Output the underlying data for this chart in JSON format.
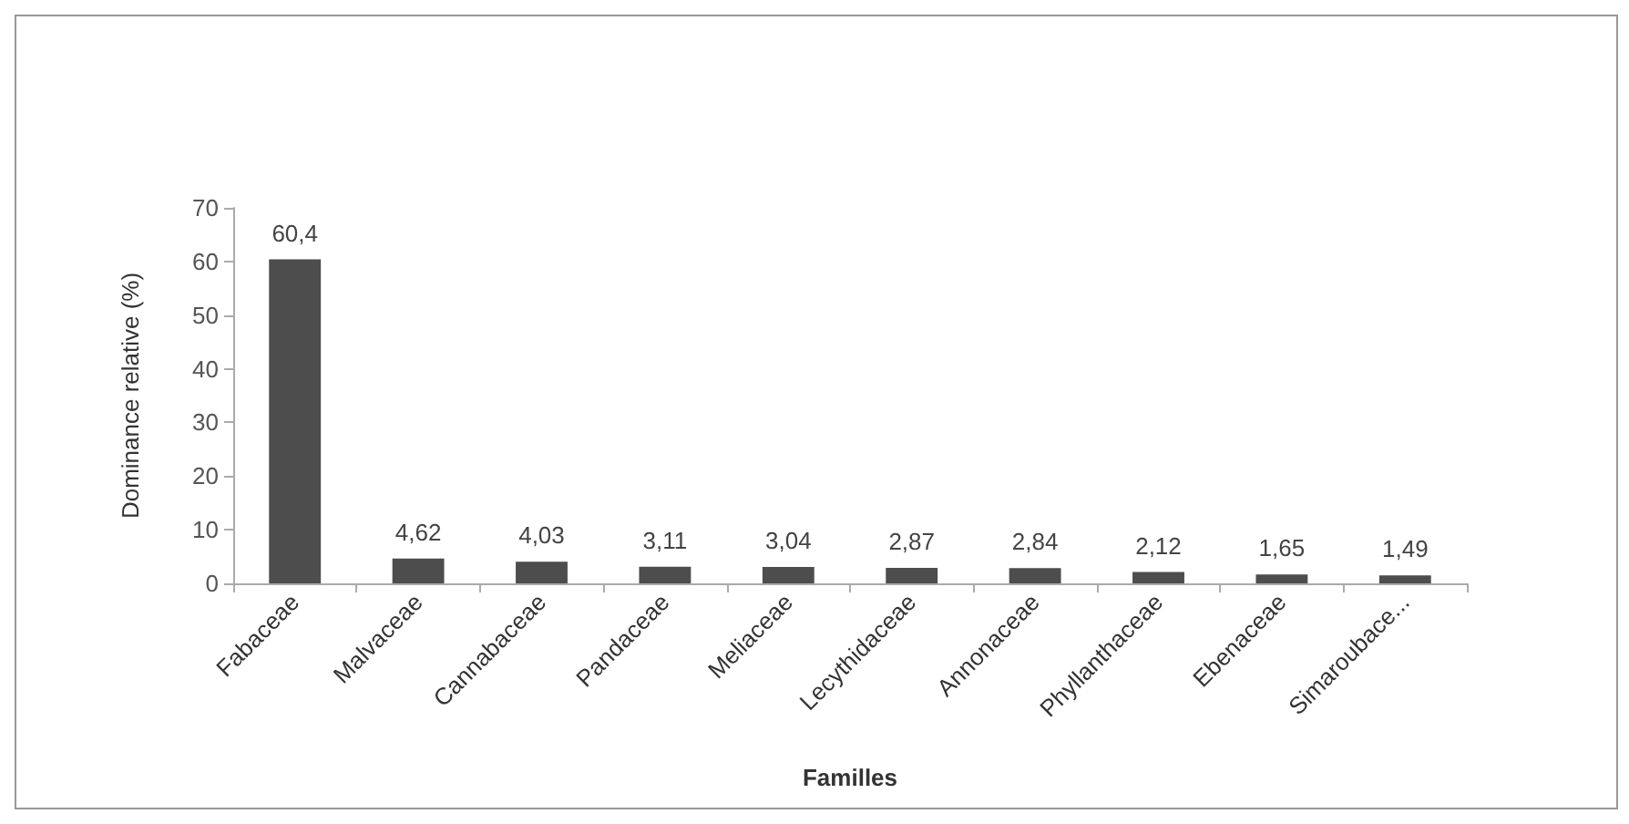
{
  "chart_data": {
    "type": "bar",
    "xlabel": "Familles",
    "ylabel": "Dominance relative (%)",
    "categories": [
      "Fabaceae",
      "Malvaceae",
      "Cannabaceae",
      "Pandaceae",
      "Meliaceae",
      "Lecythidaceae",
      "Annonaceae",
      "Phyllanthaceae",
      "Ebenaceae",
      "Simaroubace..."
    ],
    "values": [
      60.4,
      4.62,
      4.03,
      3.11,
      3.04,
      2.87,
      2.84,
      2.12,
      1.65,
      1.49
    ],
    "value_labels": [
      "60,4",
      "4,62",
      "4,03",
      "3,11",
      "3,04",
      "2,87",
      "2,84",
      "2,12",
      "1,65",
      "1,49"
    ],
    "color": "#4d4d4d",
    "ylim": [
      0,
      70
    ],
    "yticks": [
      0,
      10,
      20,
      30,
      40,
      50,
      60,
      70
    ],
    "grid": false
  }
}
